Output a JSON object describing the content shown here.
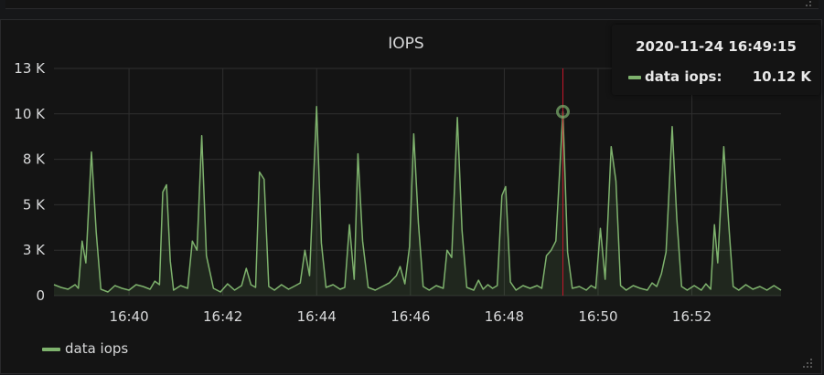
{
  "panel": {
    "title": "IOPS"
  },
  "tooltip": {
    "time": "2020-11-24 16:49:15",
    "series_name": "data iops:",
    "value": "10.12 K"
  },
  "legend": {
    "items": [
      {
        "label": "data iops"
      }
    ]
  },
  "colors": {
    "background": "#141414",
    "series": "#7eb26d",
    "crosshair": "#c4162a",
    "text": "#d8d9da",
    "grid": "#2f2f2f"
  },
  "icons": [
    "resize-handle-icon"
  ],
  "chart_data": {
    "type": "area",
    "title": "IOPS",
    "xlabel": "",
    "ylabel": "",
    "y_ticks": [
      "0",
      "3 K",
      "5 K",
      "8 K",
      "10 K",
      "13 K"
    ],
    "y_tick_values": [
      0,
      2500,
      5000,
      7500,
      10000,
      12500
    ],
    "ylim": [
      0,
      12500
    ],
    "x_ticks": [
      "16:40",
      "16:42",
      "16:44",
      "16:46",
      "16:48",
      "16:50",
      "16:52"
    ],
    "x_tick_minutes": [
      40,
      42,
      44,
      46,
      48,
      50,
      52
    ],
    "xlim_minutes": [
      38.4,
      53.9
    ],
    "grid": true,
    "legend_position": "bottom-left",
    "hover_minute": 49.25,
    "hover_value": 10120,
    "series": [
      {
        "name": "data iops",
        "points": [
          [
            38.4,
            600
          ],
          [
            38.55,
            450
          ],
          [
            38.7,
            350
          ],
          [
            38.85,
            600
          ],
          [
            38.92,
            400
          ],
          [
            39.0,
            3000
          ],
          [
            39.08,
            1800
          ],
          [
            39.2,
            7900
          ],
          [
            39.3,
            3500
          ],
          [
            39.4,
            350
          ],
          [
            39.55,
            200
          ],
          [
            39.7,
            550
          ],
          [
            39.85,
            400
          ],
          [
            40.0,
            300
          ],
          [
            40.15,
            600
          ],
          [
            40.3,
            500
          ],
          [
            40.45,
            350
          ],
          [
            40.55,
            800
          ],
          [
            40.65,
            600
          ],
          [
            40.72,
            5700
          ],
          [
            40.8,
            6100
          ],
          [
            40.88,
            1900
          ],
          [
            40.95,
            300
          ],
          [
            41.1,
            550
          ],
          [
            41.25,
            400
          ],
          [
            41.35,
            3000
          ],
          [
            41.45,
            2500
          ],
          [
            41.55,
            8800
          ],
          [
            41.65,
            2200
          ],
          [
            41.8,
            400
          ],
          [
            41.95,
            200
          ],
          [
            42.1,
            650
          ],
          [
            42.25,
            300
          ],
          [
            42.4,
            550
          ],
          [
            42.5,
            1500
          ],
          [
            42.6,
            600
          ],
          [
            42.7,
            450
          ],
          [
            42.78,
            6800
          ],
          [
            42.88,
            6400
          ],
          [
            42.98,
            500
          ],
          [
            43.1,
            300
          ],
          [
            43.25,
            600
          ],
          [
            43.4,
            350
          ],
          [
            43.55,
            550
          ],
          [
            43.65,
            700
          ],
          [
            43.75,
            2500
          ],
          [
            43.85,
            1100
          ],
          [
            44.0,
            10400
          ],
          [
            44.1,
            2900
          ],
          [
            44.2,
            450
          ],
          [
            44.35,
            600
          ],
          [
            44.5,
            350
          ],
          [
            44.6,
            450
          ],
          [
            44.7,
            3900
          ],
          [
            44.8,
            900
          ],
          [
            44.88,
            7800
          ],
          [
            44.98,
            3000
          ],
          [
            45.1,
            450
          ],
          [
            45.25,
            300
          ],
          [
            45.4,
            500
          ],
          [
            45.55,
            700
          ],
          [
            45.7,
            1100
          ],
          [
            45.78,
            1600
          ],
          [
            45.88,
            650
          ],
          [
            45.98,
            2700
          ],
          [
            46.07,
            8900
          ],
          [
            46.17,
            4000
          ],
          [
            46.27,
            500
          ],
          [
            46.4,
            300
          ],
          [
            46.55,
            550
          ],
          [
            46.7,
            400
          ],
          [
            46.78,
            2500
          ],
          [
            46.88,
            2100
          ],
          [
            47.0,
            9800
          ],
          [
            47.1,
            3600
          ],
          [
            47.2,
            450
          ],
          [
            47.35,
            300
          ],
          [
            47.45,
            850
          ],
          [
            47.55,
            350
          ],
          [
            47.65,
            600
          ],
          [
            47.75,
            400
          ],
          [
            47.85,
            550
          ],
          [
            47.95,
            5500
          ],
          [
            48.03,
            6000
          ],
          [
            48.13,
            750
          ],
          [
            48.25,
            300
          ],
          [
            48.4,
            550
          ],
          [
            48.55,
            400
          ],
          [
            48.7,
            550
          ],
          [
            48.8,
            400
          ],
          [
            48.9,
            2200
          ],
          [
            49.0,
            2500
          ],
          [
            49.1,
            3000
          ],
          [
            49.25,
            10120
          ],
          [
            49.35,
            2400
          ],
          [
            49.45,
            400
          ],
          [
            49.6,
            500
          ],
          [
            49.75,
            300
          ],
          [
            49.85,
            550
          ],
          [
            49.95,
            400
          ],
          [
            50.05,
            3700
          ],
          [
            50.15,
            900
          ],
          [
            50.28,
            8200
          ],
          [
            50.38,
            6300
          ],
          [
            50.48,
            550
          ],
          [
            50.6,
            300
          ],
          [
            50.75,
            550
          ],
          [
            50.9,
            400
          ],
          [
            51.05,
            300
          ],
          [
            51.15,
            700
          ],
          [
            51.25,
            500
          ],
          [
            51.35,
            1200
          ],
          [
            51.45,
            2400
          ],
          [
            51.58,
            9300
          ],
          [
            51.68,
            4200
          ],
          [
            51.78,
            500
          ],
          [
            51.9,
            300
          ],
          [
            52.05,
            550
          ],
          [
            52.2,
            300
          ],
          [
            52.3,
            650
          ],
          [
            52.4,
            350
          ],
          [
            52.48,
            3900
          ],
          [
            52.55,
            1800
          ],
          [
            52.68,
            8200
          ],
          [
            52.78,
            4100
          ],
          [
            52.88,
            500
          ],
          [
            53.0,
            300
          ],
          [
            53.15,
            600
          ],
          [
            53.3,
            350
          ],
          [
            53.45,
            500
          ],
          [
            53.6,
            300
          ],
          [
            53.75,
            550
          ],
          [
            53.9,
            300
          ]
        ]
      }
    ]
  }
}
